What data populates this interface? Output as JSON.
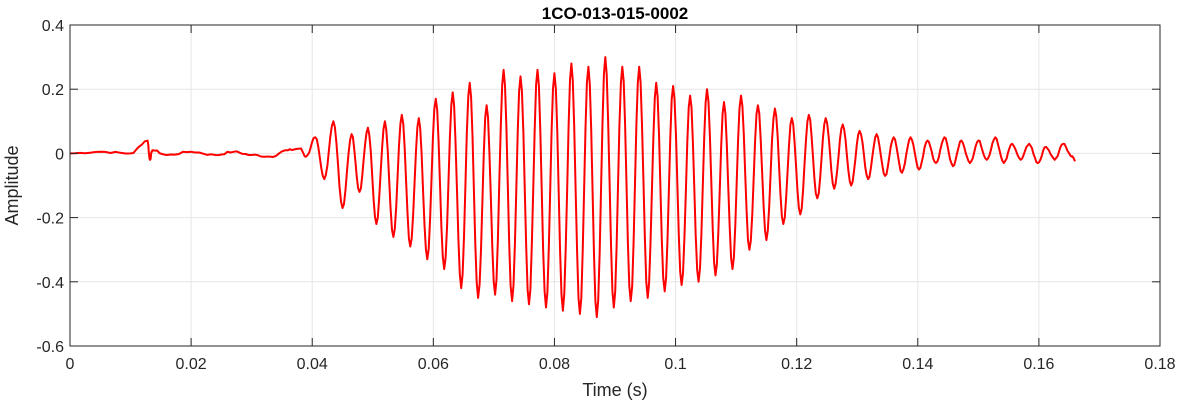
{
  "chart_data": {
    "type": "line",
    "title": "1CO-013-015-0002",
    "xlabel": "Time (s)",
    "ylabel": "Amplitude",
    "xlim": [
      0,
      0.18
    ],
    "ylim": [
      -0.6,
      0.4
    ],
    "x_ticks": [
      0,
      0.02,
      0.04,
      0.06,
      0.08,
      0.1,
      0.12,
      0.14,
      0.16,
      0.18
    ],
    "x_tick_labels": [
      "0",
      "0.02",
      "0.04",
      "0.06",
      "0.08",
      "0.1",
      "0.12",
      "0.14",
      "0.16",
      "0.18"
    ],
    "y_ticks": [
      -0.6,
      -0.4,
      -0.2,
      0,
      0.2,
      0.4
    ],
    "y_tick_labels": [
      "-0.6",
      "-0.4",
      "-0.2",
      "0",
      "0.2",
      "0.4"
    ],
    "grid": true,
    "line_color": "#ff0000",
    "series": [
      {
        "x": [
          0,
          0.005,
          0.01,
          0.0128,
          0.0132,
          0.0136,
          0.016,
          0.02,
          0.024,
          0.027,
          0.03,
          0.033,
          0.036,
          0.038,
          0.039,
          0.0405,
          0.042,
          0.0435,
          0.045,
          0.0465,
          0.0478,
          0.0492,
          0.0506,
          0.052,
          0.0534,
          0.0548,
          0.0562,
          0.0576,
          0.059,
          0.0604,
          0.0618,
          0.0632,
          0.0646,
          0.066,
          0.0674,
          0.0688,
          0.0702,
          0.0716,
          0.073,
          0.0744,
          0.0758,
          0.0772,
          0.0786,
          0.08,
          0.0814,
          0.0828,
          0.0842,
          0.0856,
          0.087,
          0.0884,
          0.0898,
          0.0912,
          0.0926,
          0.094,
          0.0954,
          0.0968,
          0.0982,
          0.0996,
          0.101,
          0.1024,
          0.1038,
          0.1052,
          0.1066,
          0.108,
          0.1094,
          0.1108,
          0.1122,
          0.1136,
          0.115,
          0.1164,
          0.1178,
          0.1192,
          0.1206,
          0.122,
          0.1234,
          0.1248,
          0.1262,
          0.1276,
          0.129,
          0.1304,
          0.1318,
          0.1332,
          0.1346,
          0.136,
          0.1374,
          0.1388,
          0.1402,
          0.1416,
          0.143,
          0.1444,
          0.1458,
          0.1472,
          0.1486,
          0.15,
          0.1514,
          0.1528,
          0.1542,
          0.1556,
          0.157,
          0.1584,
          0.1598,
          0.1612,
          0.1626,
          0.164,
          0.1654,
          0.166
        ],
        "y": [
          0,
          0.005,
          0.0,
          0.04,
          -0.02,
          0.01,
          -0.005,
          0.005,
          -0.005,
          0.005,
          -0.005,
          -0.01,
          0.01,
          0.015,
          -0.01,
          0.05,
          -0.08,
          0.1,
          -0.17,
          0.06,
          -0.12,
          0.08,
          -0.22,
          0.1,
          -0.26,
          0.12,
          -0.29,
          0.11,
          -0.33,
          0.17,
          -0.36,
          0.19,
          -0.42,
          0.22,
          -0.45,
          0.15,
          -0.44,
          0.26,
          -0.46,
          0.24,
          -0.47,
          0.26,
          -0.48,
          0.25,
          -0.49,
          0.28,
          -0.5,
          0.27,
          -0.51,
          0.3,
          -0.48,
          0.27,
          -0.46,
          0.27,
          -0.45,
          0.22,
          -0.43,
          0.21,
          -0.41,
          0.18,
          -0.4,
          0.2,
          -0.38,
          0.16,
          -0.36,
          0.18,
          -0.3,
          0.15,
          -0.27,
          0.14,
          -0.22,
          0.11,
          -0.19,
          0.12,
          -0.14,
          0.11,
          -0.11,
          0.09,
          -0.1,
          0.07,
          -0.08,
          0.06,
          -0.07,
          0.05,
          -0.06,
          0.05,
          -0.05,
          0.04,
          -0.03,
          0.05,
          -0.04,
          0.04,
          -0.03,
          0.04,
          -0.02,
          0.05,
          -0.03,
          0.03,
          -0.02,
          0.03,
          -0.03,
          0.02,
          -0.02,
          0.03,
          -0.01,
          -0.02
        ]
      }
    ]
  }
}
